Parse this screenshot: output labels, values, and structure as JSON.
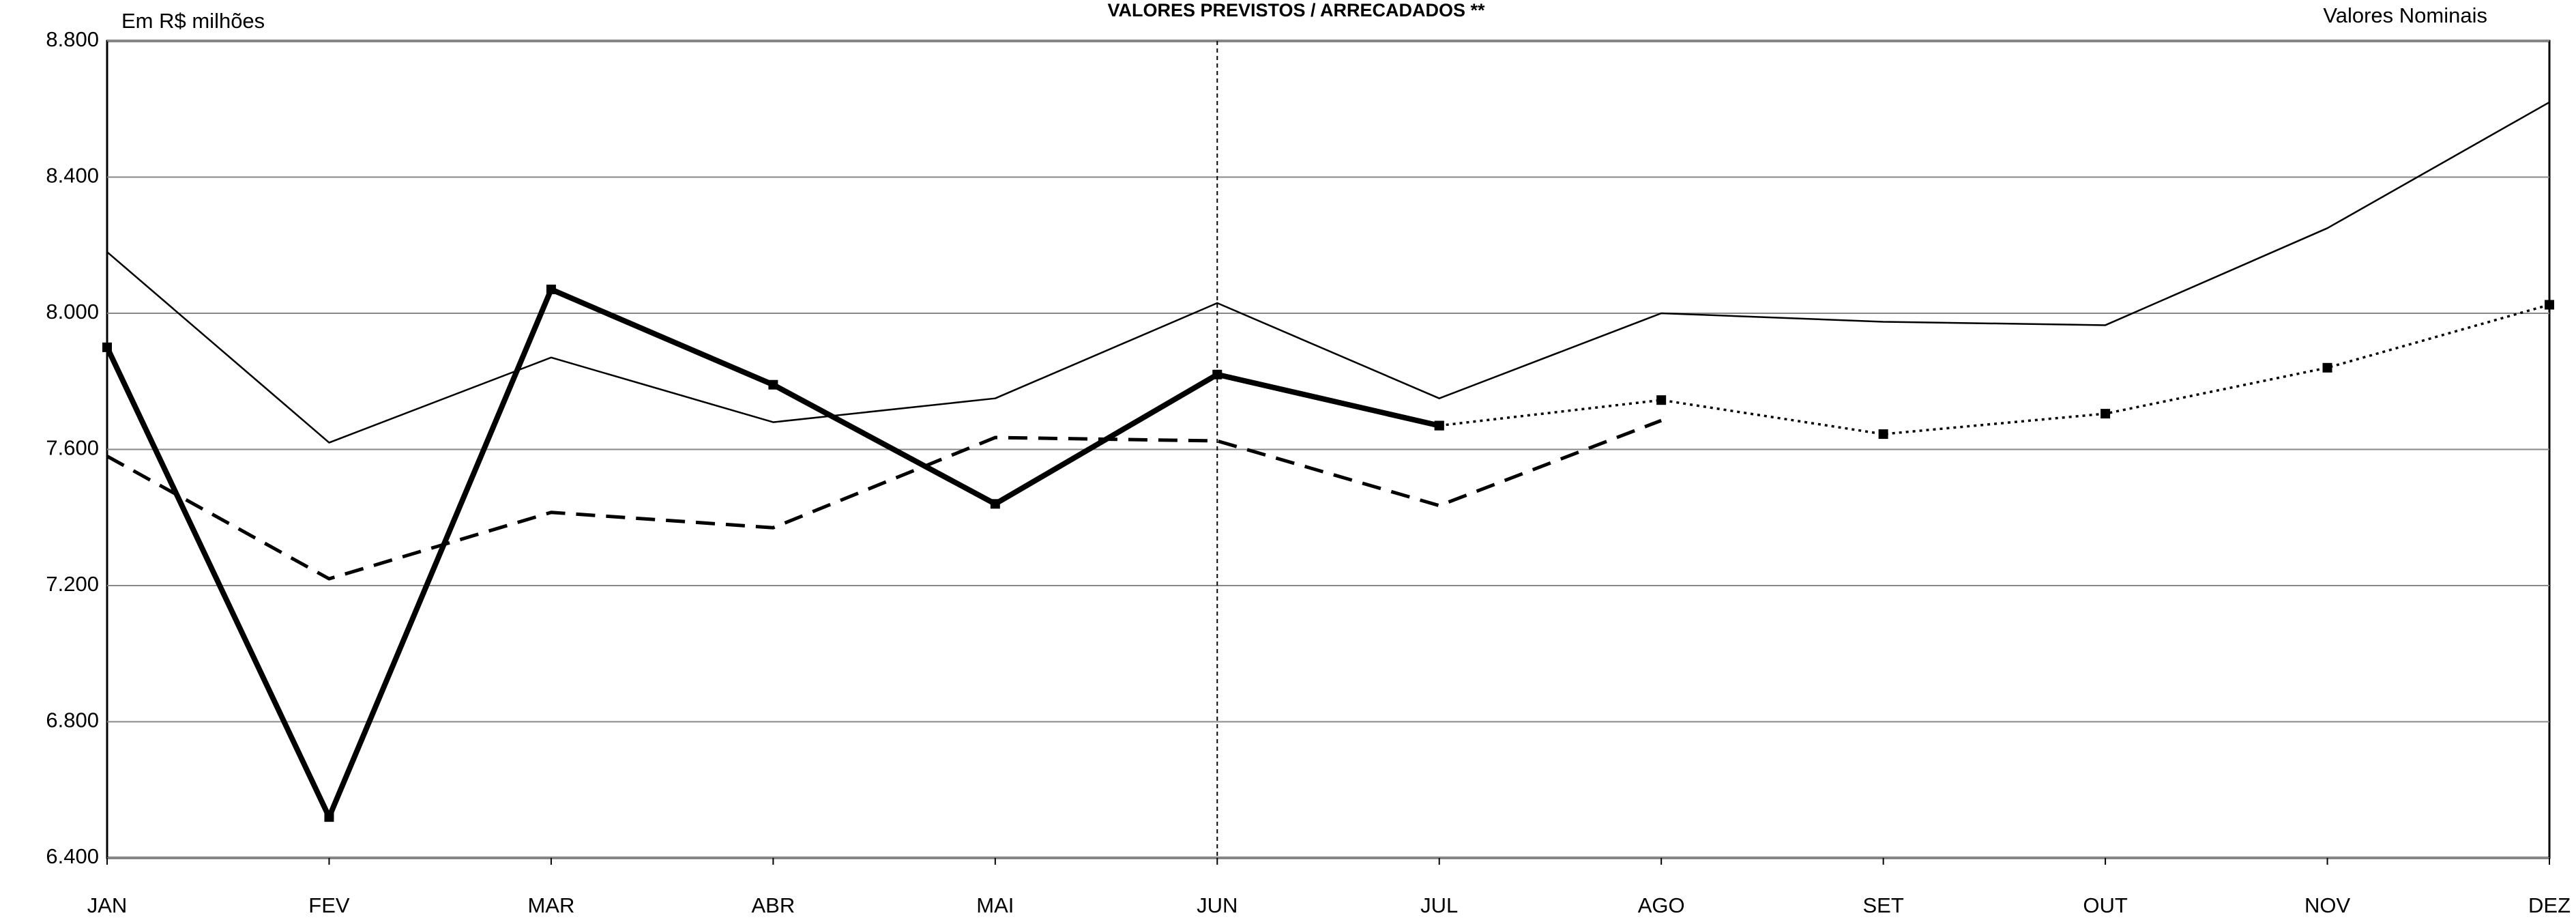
{
  "chart_data": {
    "type": "line",
    "title": "VALORES PREVISTOS / ARRECADADOS **",
    "subtitle_left": "Em R$ milhões",
    "subtitle_right": "Valores Nominais",
    "categories": [
      "JAN",
      "FEV",
      "MAR",
      "ABR",
      "MAI",
      "JUN",
      "JUL",
      "AGO",
      "SET",
      "OUT",
      "NOV",
      "DEZ"
    ],
    "ylim": [
      6400,
      8800
    ],
    "yticks": [
      {
        "value": 6400,
        "label": "6.400"
      },
      {
        "value": 6800,
        "label": "6.800"
      },
      {
        "value": 7200,
        "label": "7.200"
      },
      {
        "value": 7600,
        "label": "7.600"
      },
      {
        "value": 8000,
        "label": "8.000"
      },
      {
        "value": 8400,
        "label": "8.400"
      },
      {
        "value": 8800,
        "label": "8.800"
      }
    ],
    "grid": true,
    "series": [
      {
        "color": "#000000",
        "line_width": 2.5,
        "line_style": "solid",
        "marker": false,
        "values": [
          8180,
          7620,
          7870,
          7680,
          7750,
          8030,
          7750,
          8000,
          7975,
          7965,
          8250,
          8620
        ]
      },
      {
        "color": "#000000",
        "line_width": 8,
        "line_style": "solid",
        "marker": true,
        "values": [
          7900,
          6520,
          8070,
          7790,
          7440,
          7820,
          7670,
          null,
          null,
          null,
          null,
          null
        ]
      },
      {
        "color": "#000000",
        "line_width": 5,
        "line_style": "dashed",
        "marker": false,
        "values": [
          7580,
          7220,
          7415,
          7370,
          7635,
          7625,
          7435,
          7685,
          null,
          null,
          null,
          null
        ]
      },
      {
        "color": "#000000",
        "line_width": 3.5,
        "line_style": "dotted",
        "marker": true,
        "values": [
          null,
          null,
          null,
          null,
          null,
          null,
          7670,
          7745,
          7645,
          7705,
          7840,
          8025
        ]
      }
    ]
  }
}
